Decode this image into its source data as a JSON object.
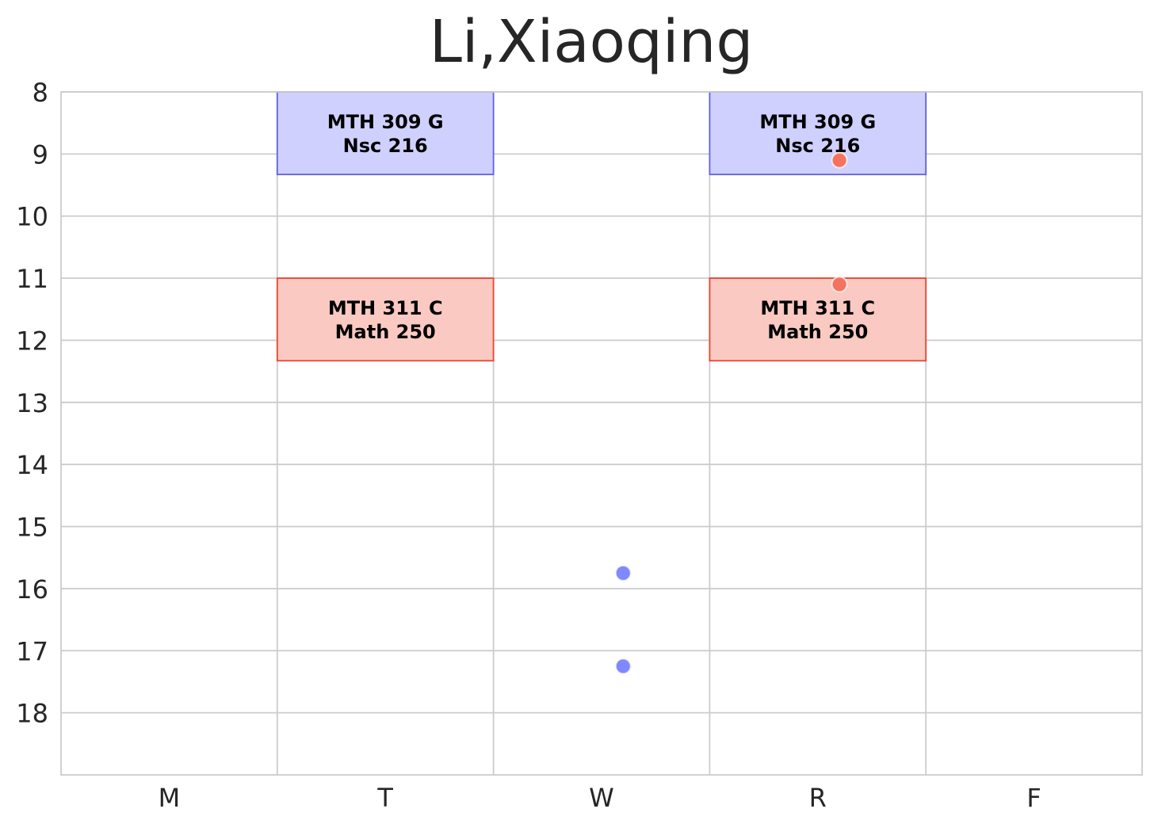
{
  "chart_data": {
    "type": "schedule",
    "title": "Li,Xiaoqing",
    "categories": [
      "M",
      "T",
      "W",
      "R",
      "F"
    ],
    "y_ticks": [
      "8",
      "9",
      "10",
      "11",
      "12",
      "13",
      "14",
      "15",
      "16",
      "17",
      "18"
    ],
    "ylim": [
      8,
      19
    ],
    "y_inverted": true,
    "grid": true,
    "blocks": [
      {
        "day": "T",
        "start": 8.0,
        "end": 9.33,
        "line1": "MTH 309 G",
        "line2": "Nsc 216",
        "fill": "#d0d0ff",
        "stroke": "#6060e0"
      },
      {
        "day": "R",
        "start": 8.0,
        "end": 9.33,
        "line1": "MTH 309 G",
        "line2": "Nsc 216",
        "fill": "#d0d0ff",
        "stroke": "#6060e0"
      },
      {
        "day": "T",
        "start": 11.0,
        "end": 12.33,
        "line1": "MTH 311 C",
        "line2": "Math 250",
        "fill": "#f9c9c2",
        "stroke": "#e8452e"
      },
      {
        "day": "R",
        "start": 11.0,
        "end": 12.33,
        "line1": "MTH 311 C",
        "line2": "Math 250",
        "fill": "#f9c9c2",
        "stroke": "#e8452e"
      }
    ],
    "points": [
      {
        "x": 3.6,
        "y": 9.1,
        "color": "#f4735e"
      },
      {
        "x": 3.6,
        "y": 11.1,
        "color": "#f4735e"
      },
      {
        "x": 2.6,
        "y": 15.75,
        "color": "#8088ff"
      },
      {
        "x": 2.6,
        "y": 17.25,
        "color": "#8088ff"
      }
    ]
  }
}
